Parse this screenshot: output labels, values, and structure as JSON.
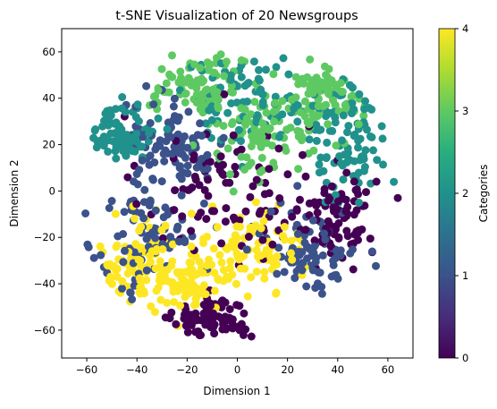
{
  "chart_data": {
    "type": "scatter",
    "title": "t-SNE Visualization of 20 Newsgroups",
    "xlabel": "Dimension 1",
    "ylabel": "Dimension 2",
    "xlim": [
      -70,
      70
    ],
    "ylim": [
      -72,
      70
    ],
    "x_ticks": [
      "-60",
      "-40",
      "-20",
      "0",
      "20",
      "40",
      "60"
    ],
    "y_ticks": [
      "-60",
      "-40",
      "-20",
      "0",
      "20",
      "40",
      "60"
    ],
    "grid": false,
    "colormap": "viridis",
    "colorbar": {
      "label": "Categories",
      "ticks": [
        "0",
        "1",
        "2",
        "3",
        "4"
      ],
      "range": [
        0,
        4
      ]
    },
    "cluster_summary": [
      {
        "category": 0,
        "center": [
          -5,
          0
        ],
        "spread": [
          22,
          22
        ]
      },
      {
        "category": 0,
        "center": [
          40,
          -10
        ],
        "spread": [
          10,
          12
        ]
      },
      {
        "category": 0,
        "center": [
          -10,
          -55
        ],
        "spread": [
          10,
          6
        ]
      },
      {
        "category": 1,
        "center": [
          -35,
          -20
        ],
        "spread": [
          14,
          18
        ]
      },
      {
        "category": 1,
        "center": [
          -25,
          20
        ],
        "spread": [
          14,
          12
        ]
      },
      {
        "category": 1,
        "center": [
          30,
          -25
        ],
        "spread": [
          12,
          12
        ]
      },
      {
        "category": 2,
        "center": [
          5,
          40
        ],
        "spread": [
          20,
          12
        ]
      },
      {
        "category": 2,
        "center": [
          45,
          20
        ],
        "spread": [
          10,
          18
        ]
      },
      {
        "category": 2,
        "center": [
          -45,
          25
        ],
        "spread": [
          8,
          8
        ]
      },
      {
        "category": 3,
        "center": [
          10,
          25
        ],
        "spread": [
          16,
          12
        ]
      },
      {
        "category": 3,
        "center": [
          -15,
          45
        ],
        "spread": [
          12,
          8
        ]
      },
      {
        "category": 3,
        "center": [
          35,
          40
        ],
        "spread": [
          10,
          10
        ]
      },
      {
        "category": 4,
        "center": [
          5,
          -25
        ],
        "spread": [
          14,
          12
        ]
      },
      {
        "category": 4,
        "center": [
          -40,
          -30
        ],
        "spread": [
          10,
          12
        ]
      },
      {
        "category": 4,
        "center": [
          -20,
          -40
        ],
        "spread": [
          10,
          8
        ]
      }
    ],
    "points_per_cluster": 90
  },
  "colors": {
    "viridis": [
      "#440154",
      "#3b528b",
      "#21918c",
      "#5ec962",
      "#fde725"
    ]
  }
}
